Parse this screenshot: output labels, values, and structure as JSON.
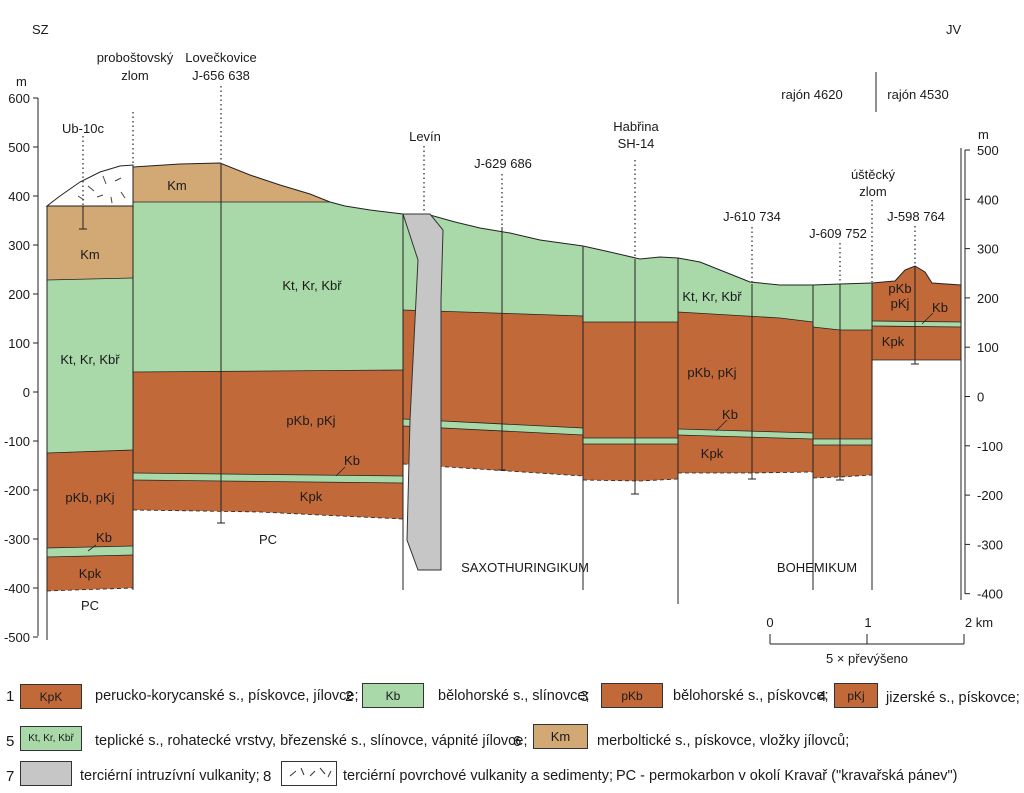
{
  "header": {
    "left_direction": "SZ",
    "right_direction": "JV",
    "unit_left": "m",
    "unit_right": "m",
    "region_left": "rajón 4620",
    "region_right": "rajón 4530"
  },
  "axis": {
    "left_ticks": [
      "600",
      "500",
      "400",
      "300",
      "200",
      "100",
      "0",
      "-100",
      "-200",
      "-300",
      "-400",
      "-500"
    ],
    "right_ticks": [
      "500",
      "400",
      "300",
      "200",
      "100",
      "0",
      "-100",
      "-200",
      "-300",
      "-400"
    ]
  },
  "boreholes": {
    "ub10c": "Ub-10c",
    "probostov_1": "proboštovský",
    "probostov_2": "zlom",
    "loveckovice_1": "Lovečkovice",
    "loveckovice_2": "J-656 638",
    "levin": "Levín",
    "j629": "J-629 686",
    "habrina_1": "Habřina",
    "habrina_2": "SH-14",
    "j610": "J-610 734",
    "ustecky_1": "úštěcký",
    "ustecky_2": "zlom",
    "j609": "J-609 752",
    "j598": "J-598 764"
  },
  "units": {
    "km": "Km",
    "kt": "Kt, Kr, Kbř",
    "pkb": "pKb, pKj",
    "kb": "Kb",
    "kpk": "Kpk",
    "pc": "PC",
    "pkb_short": "pKb",
    "pkj_short": "pKj"
  },
  "regions": {
    "saxo": "SAXOTHURINGIKUM",
    "bohem": "BOHEMIKUM"
  },
  "scale": {
    "t0": "0",
    "t1": "1",
    "t2": "2 km",
    "caption": "5 × převýšeno"
  },
  "legend": [
    {
      "num": "1",
      "swatch": "KpK",
      "text": "perucko-korycanské s., pískovce, jílovce;"
    },
    {
      "num": "2",
      "swatch": "Kb",
      "text": "bělohorské s., slínovce;"
    },
    {
      "num": "3",
      "swatch": "pKb",
      "text": "bělohorské s., pískovce;"
    },
    {
      "num": "4",
      "swatch": "pKj",
      "text": "jizerské s., pískovce;"
    },
    {
      "num": "5",
      "swatch": "Kt, Kr, Kbř",
      "text": "teplické s., rohatecké vrstvy, březenské s., slínovce, vápnité jílovce;"
    },
    {
      "num": "6",
      "swatch": "Km",
      "text": "merboltické s., pískovce, vložky jílovců;"
    },
    {
      "num": "7",
      "swatch": "",
      "text": "terciérní intruzívní vulkanity;"
    },
    {
      "num": "8",
      "swatch": "",
      "text": "terciérní povrchové vulkanity a sedimenty;"
    },
    {
      "num": "",
      "swatch": "",
      "text": "PC - permokarbon v okolí Kravař (\"kravařská pánev\")"
    }
  ],
  "colors": {
    "brown": "#c2693a",
    "green": "#a9d8a9",
    "tan": "#d2a874",
    "grey": "#c6c6c6"
  }
}
